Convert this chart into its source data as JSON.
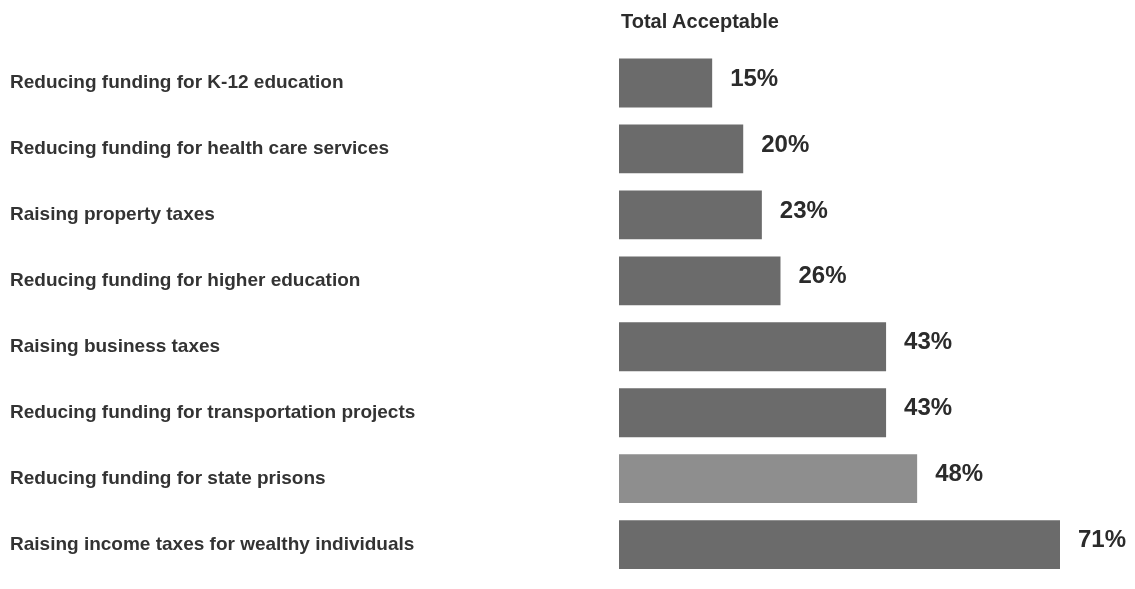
{
  "chart_data": {
    "type": "bar",
    "orientation": "horizontal",
    "title": "Total Acceptable",
    "categories": [
      "Reducing funding for K-12 education",
      "Reducing funding for health care services",
      "Raising property taxes",
      "Reducing funding for higher education",
      "Raising business taxes",
      "Reducing funding for transportation projects",
      "Reducing funding for state prisons",
      "Raising income taxes for wealthy individuals"
    ],
    "values": [
      15,
      20,
      23,
      26,
      43,
      43,
      48,
      71
    ],
    "colors": [
      "#6b6b6b",
      "#6b6b6b",
      "#6b6b6b",
      "#6b6b6b",
      "#6b6b6b",
      "#6b6b6b",
      "#8e8e8e",
      "#6b6b6b"
    ],
    "value_labels": [
      "15%",
      "20%",
      "23%",
      "26%",
      "43%",
      "43%",
      "48%",
      "71%"
    ],
    "grid": false,
    "legend": false
  }
}
